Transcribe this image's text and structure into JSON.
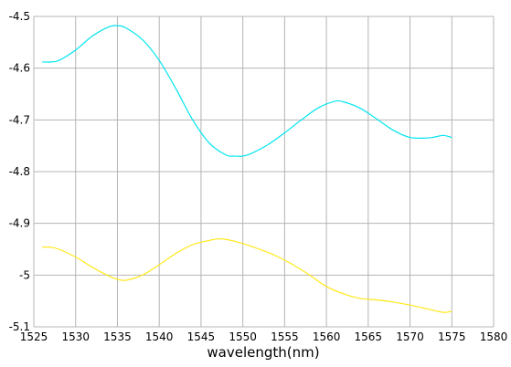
{
  "chart_data": {
    "type": "line",
    "title": "",
    "xlabel": "wavelength(nm)",
    "ylabel": "",
    "xlim": [
      1525,
      1580
    ],
    "ylim": [
      -5.1,
      -4.5
    ],
    "xticks": [
      1525,
      1530,
      1535,
      1540,
      1545,
      1550,
      1555,
      1560,
      1565,
      1570,
      1575,
      1580
    ],
    "xtick_labels": [
      "1525",
      "1530",
      "1535",
      "1540",
      "1545",
      "1550",
      "1555",
      "1560",
      "1565",
      "1570",
      "1575",
      "1580"
    ],
    "yticks": [
      -4.5,
      -4.6,
      -4.7,
      -4.8,
      -4.9,
      -5.0,
      -5.1
    ],
    "ytick_labels": [
      "-4.5",
      "-4.6",
      "-4.7",
      "-4.8",
      "-4.9",
      "-5",
      "-5.1"
    ],
    "grid": true,
    "legend": "none",
    "series": [
      {
        "color": "#00e5ee",
        "x": [
          1526,
          1527,
          1528,
          1530,
          1532,
          1534,
          1535,
          1536,
          1538,
          1540,
          1542,
          1544,
          1546,
          1548,
          1549,
          1550,
          1551,
          1553,
          1555,
          1557,
          1559,
          1561,
          1562,
          1564,
          1566,
          1568,
          1570,
          1572,
          1573,
          1574,
          1575
        ],
        "y": [
          -4.588,
          -4.588,
          -4.585,
          -4.565,
          -4.538,
          -4.52,
          -4.518,
          -4.522,
          -4.545,
          -4.585,
          -4.64,
          -4.7,
          -4.745,
          -4.768,
          -4.77,
          -4.77,
          -4.765,
          -4.748,
          -4.725,
          -4.7,
          -4.677,
          -4.664,
          -4.665,
          -4.677,
          -4.698,
          -4.72,
          -4.734,
          -4.735,
          -4.733,
          -4.73,
          -4.734
        ]
      },
      {
        "color": "#ffe817",
        "x": [
          1526,
          1527,
          1528,
          1530,
          1532,
          1534,
          1535,
          1536,
          1538,
          1540,
          1542,
          1544,
          1546,
          1547,
          1548,
          1550,
          1552,
          1554,
          1556,
          1558,
          1560,
          1562,
          1564,
          1566,
          1568,
          1570,
          1572,
          1574,
          1575
        ],
        "y": [
          -4.946,
          -4.946,
          -4.95,
          -4.965,
          -4.985,
          -5.002,
          -5.008,
          -5.01,
          -5.0,
          -4.98,
          -4.958,
          -4.941,
          -4.933,
          -4.93,
          -4.931,
          -4.939,
          -4.95,
          -4.963,
          -4.98,
          -5.0,
          -5.022,
          -5.036,
          -5.045,
          -5.048,
          -5.052,
          -5.058,
          -5.065,
          -5.072,
          -5.07
        ]
      }
    ]
  }
}
